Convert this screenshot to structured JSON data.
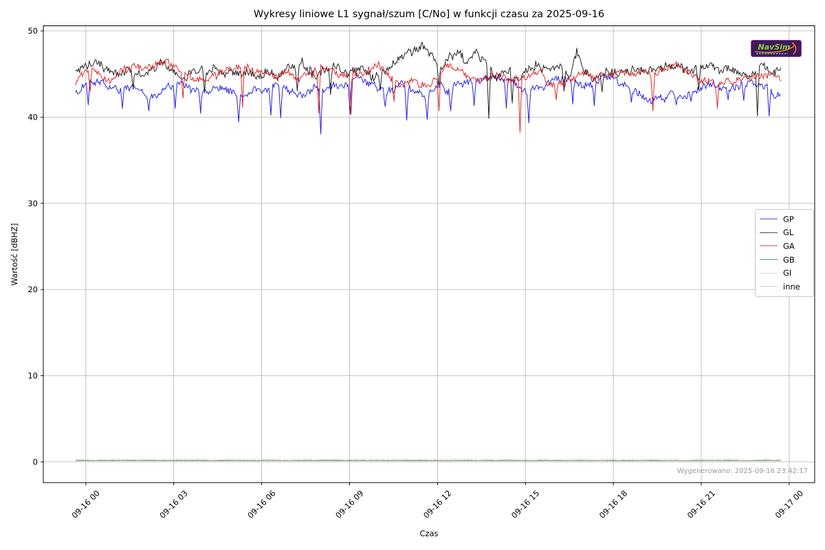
{
  "figure": {
    "title": "Wykresy liniowe L1 sygnał/szum [C/No] w funkcji czasu za 2025-09-16",
    "xlabel": "Czas",
    "ylabel": "Wartość [dBHZ]",
    "generated_label": "Wygenerowano: 2025-09-16 23:42:17",
    "logo_text": "NavSim",
    "colors": {
      "grid": "#b0b0b0",
      "frame": "#000000",
      "timestamp": "#999999",
      "logo_bg": "#41175a",
      "logo_text": "#7ed63a",
      "logo_accent": "#ff8c1a",
      "logo_sub": "#49c8e8"
    }
  },
  "chart_data": {
    "type": "line",
    "title": "Wykresy liniowe L1 sygnał/szum [C/No] w funkcji czasu za 2025-09-16",
    "xlabel": "Czas",
    "ylabel": "Wartość [dBHZ]",
    "x_unit": "hours since 2025-09-16 00:00",
    "xlim": [
      -1.45,
      24.87
    ],
    "ylim": [
      -2.4,
      50.6
    ],
    "grid": true,
    "legend_position": "right",
    "x_ticks": [
      {
        "t": 0,
        "label": "09-16 00"
      },
      {
        "t": 3,
        "label": "09-16 03"
      },
      {
        "t": 6,
        "label": "09-16 06"
      },
      {
        "t": 9,
        "label": "09-16 09"
      },
      {
        "t": 12,
        "label": "09-16 12"
      },
      {
        "t": 15,
        "label": "09-16 15"
      },
      {
        "t": 18,
        "label": "09-16 18"
      },
      {
        "t": 21,
        "label": "09-16 21"
      },
      {
        "t": 24,
        "label": "09-17 00"
      }
    ],
    "y_ticks": [
      0,
      10,
      20,
      30,
      40,
      50
    ],
    "t_start": -0.35,
    "t_end": 23.72,
    "sample_step_minutes": 2,
    "seed": 20250916,
    "series": [
      {
        "name": "GP",
        "color": "#0b0bdc",
        "noise": 0.5,
        "base": [
          [
            -0.35,
            42.7
          ],
          [
            0,
            43.9
          ],
          [
            0.4,
            44.3
          ],
          [
            0.8,
            43.6
          ],
          [
            1.2,
            43.1
          ],
          [
            1.6,
            43.5
          ],
          [
            2,
            42.9
          ],
          [
            2.4,
            42.6
          ],
          [
            2.8,
            43.4
          ],
          [
            3.2,
            43.9
          ],
          [
            3.6,
            43.6
          ],
          [
            4,
            43.2
          ],
          [
            4.4,
            42.8
          ],
          [
            4.8,
            43.1
          ],
          [
            5.2,
            42.6
          ],
          [
            5.6,
            42.9
          ],
          [
            6,
            43.5
          ],
          [
            6.4,
            43.8
          ],
          [
            6.8,
            43.3
          ],
          [
            7.2,
            42.9
          ],
          [
            7.6,
            43.1
          ],
          [
            8,
            43.3
          ],
          [
            8.4,
            43.6
          ],
          [
            8.8,
            44.0
          ],
          [
            9.2,
            44.3
          ],
          [
            9.6,
            43.9
          ],
          [
            10,
            43.4
          ],
          [
            10.4,
            43.0
          ],
          [
            10.8,
            43.6
          ],
          [
            11.2,
            43.3
          ],
          [
            11.6,
            43.0
          ],
          [
            12,
            43.7
          ],
          [
            12.4,
            43.3
          ],
          [
            12.8,
            43.9
          ],
          [
            13.2,
            44.2
          ],
          [
            13.6,
            44.5
          ],
          [
            14,
            44.6
          ],
          [
            14.4,
            44.0
          ],
          [
            14.8,
            43.2
          ],
          [
            15.2,
            42.9
          ],
          [
            15.6,
            43.4
          ],
          [
            16,
            44.5
          ],
          [
            16.4,
            44.2
          ],
          [
            16.8,
            43.8
          ],
          [
            17.2,
            44.0
          ],
          [
            17.6,
            44.4
          ],
          [
            18,
            44.5
          ],
          [
            18.4,
            43.6
          ],
          [
            18.8,
            42.9
          ],
          [
            19.2,
            42.4
          ],
          [
            19.6,
            42.2
          ],
          [
            20,
            42.7
          ],
          [
            20.4,
            42.4
          ],
          [
            20.8,
            42.9
          ],
          [
            21.2,
            43.5
          ],
          [
            21.6,
            43.8
          ],
          [
            22,
            43.3
          ],
          [
            22.4,
            43.7
          ],
          [
            22.8,
            44.0
          ],
          [
            23.2,
            43.4
          ],
          [
            23.5,
            42.9
          ],
          [
            23.72,
            42.6
          ]
        ],
        "spikes": [
          [
            0.1,
            41.4
          ],
          [
            1.25,
            41.0
          ],
          [
            2.15,
            40.7
          ],
          [
            3.05,
            41.0
          ],
          [
            3.9,
            40.4
          ],
          [
            5.2,
            39.4
          ],
          [
            6.3,
            40.2
          ],
          [
            6.65,
            39.9
          ],
          [
            8.0,
            38.0
          ],
          [
            9.0,
            40.3
          ],
          [
            10.2,
            41.2
          ],
          [
            10.95,
            39.6
          ],
          [
            11.65,
            39.7
          ],
          [
            12.45,
            40.7
          ],
          [
            13.25,
            41.3
          ],
          [
            14.35,
            41.0
          ],
          [
            15.1,
            39.3
          ],
          [
            16.6,
            41.5
          ],
          [
            17.35,
            41.3
          ],
          [
            18.6,
            41.7
          ],
          [
            19.3,
            41.6
          ],
          [
            20.15,
            41.4
          ],
          [
            20.65,
            41.8
          ],
          [
            21.9,
            42.0
          ],
          [
            22.45,
            41.9
          ],
          [
            23.3,
            40.1
          ]
        ]
      },
      {
        "name": "GL",
        "color": "#0a0a0a",
        "noise": 0.6,
        "base": [
          [
            -0.35,
            45.6
          ],
          [
            0,
            45.9
          ],
          [
            0.3,
            46.4
          ],
          [
            0.7,
            45.6
          ],
          [
            1,
            45.1
          ],
          [
            1.4,
            45.9
          ],
          [
            1.8,
            44.9
          ],
          [
            2.2,
            45.5
          ],
          [
            2.6,
            45.9
          ],
          [
            3,
            45.2
          ],
          [
            3.4,
            44.7
          ],
          [
            3.8,
            45.4
          ],
          [
            4.2,
            45.8
          ],
          [
            4.6,
            44.9
          ],
          [
            5,
            45.3
          ],
          [
            5.4,
            45.7
          ],
          [
            5.8,
            44.7
          ],
          [
            6.2,
            45.2
          ],
          [
            6.6,
            44.5
          ],
          [
            7,
            45.5
          ],
          [
            7.4,
            46.0
          ],
          [
            7.8,
            45.1
          ],
          [
            8.2,
            45.7
          ],
          [
            8.6,
            45.9
          ],
          [
            9,
            45.1
          ],
          [
            9.4,
            45.6
          ],
          [
            9.8,
            45.0
          ],
          [
            10.2,
            45.4
          ],
          [
            10.6,
            46.3
          ],
          [
            11,
            47.7
          ],
          [
            11.3,
            48.0
          ],
          [
            11.6,
            47.9
          ],
          [
            11.9,
            46.7
          ],
          [
            12.1,
            45.4
          ],
          [
            12.4,
            47.2
          ],
          [
            12.7,
            47.6
          ],
          [
            13,
            46.2
          ],
          [
            13.3,
            47.4
          ],
          [
            13.6,
            46.4
          ],
          [
            14,
            44.7
          ],
          [
            14.4,
            45.7
          ],
          [
            14.8,
            44.6
          ],
          [
            15.1,
            45.9
          ],
          [
            15.4,
            46.4
          ],
          [
            15.8,
            45.1
          ],
          [
            16.1,
            45.7
          ],
          [
            16.5,
            44.9
          ],
          [
            16.75,
            48.1
          ],
          [
            17,
            45.5
          ],
          [
            17.4,
            44.6
          ],
          [
            17.8,
            45.4
          ],
          [
            18.2,
            45.0
          ],
          [
            18.6,
            45.8
          ],
          [
            19,
            45.3
          ],
          [
            19.4,
            46.0
          ],
          [
            19.8,
            45.5
          ],
          [
            20.2,
            45.9
          ],
          [
            20.6,
            45.2
          ],
          [
            21,
            45.7
          ],
          [
            21.4,
            46.2
          ],
          [
            21.8,
            45.8
          ],
          [
            22.2,
            45.4
          ],
          [
            22.6,
            45.1
          ],
          [
            23,
            45.7
          ],
          [
            23.4,
            45.3
          ],
          [
            23.72,
            45.5
          ]
        ],
        "spikes": [
          [
            1.6,
            43.2
          ],
          [
            4.05,
            42.8
          ],
          [
            7.2,
            43.0
          ],
          [
            8.35,
            42.6
          ],
          [
            10.05,
            43.1
          ],
          [
            12.05,
            43.4
          ],
          [
            13.75,
            39.8
          ],
          [
            14.55,
            41.6
          ],
          [
            16.3,
            43.0
          ],
          [
            17.6,
            42.9
          ],
          [
            20.9,
            43.2
          ],
          [
            22.9,
            40.1
          ]
        ]
      },
      {
        "name": "GA",
        "color": "#dc0f0f",
        "noise": 0.5,
        "base": [
          [
            -0.35,
            43.9
          ],
          [
            0,
            45.4
          ],
          [
            0.4,
            45.0
          ],
          [
            0.8,
            44.4
          ],
          [
            1.2,
            45.1
          ],
          [
            1.6,
            45.6
          ],
          [
            2,
            45.9
          ],
          [
            2.4,
            46.2
          ],
          [
            2.8,
            46.3
          ],
          [
            3.2,
            45.5
          ],
          [
            3.6,
            44.9
          ],
          [
            4,
            44.4
          ],
          [
            4.4,
            45.0
          ],
          [
            4.8,
            45.5
          ],
          [
            5.2,
            45.9
          ],
          [
            5.6,
            45.6
          ],
          [
            6,
            45.2
          ],
          [
            6.4,
            44.8
          ],
          [
            6.8,
            45.3
          ],
          [
            7.2,
            44.7
          ],
          [
            7.6,
            45.2
          ],
          [
            8,
            45.7
          ],
          [
            8.4,
            45.9
          ],
          [
            8.8,
            44.7
          ],
          [
            9.2,
            44.9
          ],
          [
            9.6,
            45.4
          ],
          [
            10,
            46.1
          ],
          [
            10.4,
            44.3
          ],
          [
            10.8,
            43.9
          ],
          [
            11.2,
            44.2
          ],
          [
            11.6,
            43.8
          ],
          [
            12,
            44.6
          ],
          [
            12.3,
            45.9
          ],
          [
            12.6,
            45.3
          ],
          [
            13,
            44.8
          ],
          [
            13.4,
            44.3
          ],
          [
            13.8,
            45.0
          ],
          [
            14.2,
            44.7
          ],
          [
            14.6,
            44.3
          ],
          [
            15,
            44.7
          ],
          [
            15.4,
            45.4
          ],
          [
            15.8,
            44.1
          ],
          [
            16.2,
            43.9
          ],
          [
            16.6,
            44.7
          ],
          [
            17,
            45.3
          ],
          [
            17.4,
            44.5
          ],
          [
            17.8,
            44.9
          ],
          [
            18.2,
            45.3
          ],
          [
            18.6,
            45.0
          ],
          [
            19,
            44.7
          ],
          [
            19.4,
            45.2
          ],
          [
            19.8,
            45.7
          ],
          [
            20.2,
            45.9
          ],
          [
            20.6,
            45.3
          ],
          [
            21,
            44.6
          ],
          [
            21.4,
            44.1
          ],
          [
            21.8,
            43.9
          ],
          [
            22.2,
            44.5
          ],
          [
            22.6,
            44.9
          ],
          [
            23,
            44.6
          ],
          [
            23.4,
            45.0
          ],
          [
            23.72,
            44.4
          ]
        ],
        "spikes": [
          [
            0.15,
            43.0
          ],
          [
            3.3,
            42.2
          ],
          [
            5.35,
            41.1
          ],
          [
            7.95,
            40.4
          ],
          [
            9.05,
            40.3
          ],
          [
            10.5,
            41.8
          ],
          [
            12.05,
            40.7
          ],
          [
            14.82,
            38.2
          ],
          [
            16.05,
            42.0
          ],
          [
            19.35,
            40.7
          ],
          [
            21.55,
            41.0
          ]
        ]
      },
      {
        "name": "GB",
        "color": "#0a7a28",
        "noise": 0.02,
        "base": [
          [
            -0.35,
            0.2
          ],
          [
            23.72,
            0.2
          ]
        ],
        "spikes": []
      },
      {
        "name": "GI",
        "color": "#aed4e8",
        "noise": 0.02,
        "base": [
          [
            -0.35,
            0.16
          ],
          [
            23.72,
            0.16
          ]
        ],
        "spikes": []
      },
      {
        "name": "inne",
        "color": "#dcb88c",
        "noise": 0.02,
        "base": [
          [
            -0.35,
            0.12
          ],
          [
            23.72,
            0.12
          ]
        ],
        "spikes": []
      }
    ]
  }
}
